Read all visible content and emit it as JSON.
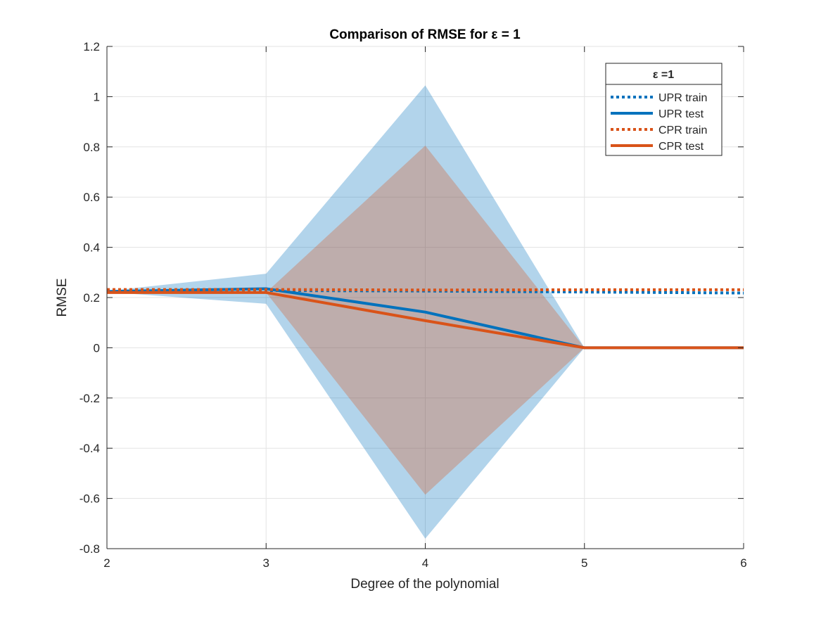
{
  "chart_data": {
    "type": "line",
    "title": "Comparison of RMSE for ε = 1",
    "xlabel": "Degree of the polynomial",
    "ylabel": "RMSE",
    "xlim": [
      2,
      6
    ],
    "ylim": [
      -0.8,
      1.2
    ],
    "x_ticks": [
      "2",
      "3",
      "4",
      "5",
      "6"
    ],
    "y_ticks": [
      "-0.8",
      "-0.6",
      "-0.4",
      "-0.2",
      "0",
      "0.2",
      "0.4",
      "0.6",
      "0.8",
      "1",
      "1.2"
    ],
    "grid": true,
    "legend": {
      "title": "ε =1",
      "placement": "top-right"
    },
    "x": [
      2,
      3,
      4,
      5,
      6
    ],
    "series": [
      {
        "name": "UPR train",
        "style": "dotted",
        "color": "#0072BD",
        "values": [
          0.228,
          0.228,
          0.226,
          0.222,
          0.218
        ]
      },
      {
        "name": "UPR test",
        "style": "solid",
        "color": "#0072BD",
        "values": [
          0.224,
          0.235,
          0.142,
          0.0,
          0.0
        ]
      },
      {
        "name": "CPR train",
        "style": "dotted",
        "color": "#D95319",
        "values": [
          0.232,
          0.232,
          0.23,
          0.231,
          0.231
        ]
      },
      {
        "name": "CPR test",
        "style": "solid",
        "color": "#D95319",
        "values": [
          0.22,
          0.22,
          0.108,
          0.0,
          0.0
        ]
      }
    ],
    "bands": [
      {
        "series": "UPR test",
        "color": "#0072BD",
        "lower": [
          0.222,
          0.175,
          -0.76,
          0.0,
          0.0
        ],
        "upper": [
          0.226,
          0.295,
          1.045,
          0.0,
          0.0
        ]
      },
      {
        "series": "CPR test",
        "color": "#D95319",
        "lower": [
          0.218,
          0.22,
          -0.585,
          0.0,
          0.0
        ],
        "upper": [
          0.222,
          0.22,
          0.805,
          0.0,
          0.0
        ]
      }
    ]
  }
}
